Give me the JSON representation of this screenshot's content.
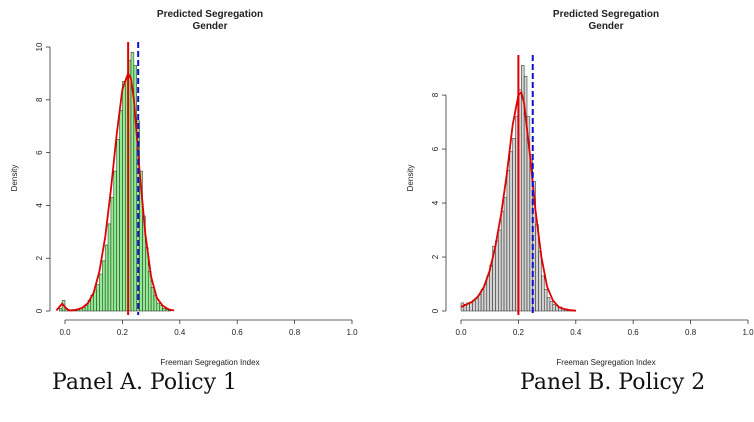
{
  "colors": {
    "panel_a_bar_fill": "#90ee90",
    "panel_b_bar_fill": "#d3d3d3",
    "bar_stroke": "#222222",
    "density_curve": "#e00000",
    "solid_line": "#e00000",
    "dashed_line": "#1010d0"
  },
  "captions": {
    "panel_a": "Panel A. Policy 1",
    "panel_b": "Panel B. Policy 2"
  },
  "chart_data": [
    {
      "type": "bar",
      "title": "Predicted Segregation",
      "subtitle": "Gender",
      "xlabel": "Freeman Segregation Index",
      "ylabel": "Density",
      "xlim": [
        0.0,
        1.0
      ],
      "ylim": [
        0,
        10
      ],
      "xticks": [
        "0.0",
        "0.2",
        "0.4",
        "0.6",
        "0.8",
        "1.0"
      ],
      "yticks": [
        "0",
        "2",
        "4",
        "6",
        "8",
        "10"
      ],
      "bin_width": 0.01,
      "bins_start": [
        -0.02,
        -0.01,
        0.0,
        0.01,
        0.02,
        0.03,
        0.04,
        0.05,
        0.06,
        0.07,
        0.08,
        0.09,
        0.1,
        0.11,
        0.12,
        0.13,
        0.14,
        0.15,
        0.16,
        0.17,
        0.18,
        0.19,
        0.2,
        0.21,
        0.22,
        0.23,
        0.24,
        0.25,
        0.26,
        0.27,
        0.28,
        0.29,
        0.3,
        0.31,
        0.32,
        0.33,
        0.34,
        0.35,
        0.36
      ],
      "density": [
        0.1,
        0.4,
        0.1,
        0.05,
        0.05,
        0.05,
        0.05,
        0.1,
        0.15,
        0.2,
        0.4,
        0.6,
        0.8,
        1.0,
        1.4,
        1.9,
        2.5,
        3.3,
        4.3,
        5.3,
        6.5,
        7.6,
        8.7,
        8.8,
        9.5,
        9.8,
        9.3,
        7.2,
        5.3,
        3.6,
        2.4,
        1.5,
        0.9,
        0.6,
        0.3,
        0.2,
        0.1,
        0.05,
        0.02
      ],
      "density_curve": {
        "x": [
          -0.03,
          -0.02,
          -0.01,
          0.0,
          0.01,
          0.02,
          0.04,
          0.06,
          0.08,
          0.1,
          0.12,
          0.14,
          0.16,
          0.18,
          0.2,
          0.22,
          0.23,
          0.24,
          0.26,
          0.28,
          0.3,
          0.32,
          0.34,
          0.36,
          0.38
        ],
        "y": [
          0.02,
          0.15,
          0.28,
          0.15,
          0.04,
          0.02,
          0.05,
          0.12,
          0.3,
          0.7,
          1.5,
          2.8,
          4.6,
          6.7,
          8.4,
          9.0,
          8.8,
          8.0,
          5.3,
          2.9,
          1.3,
          0.5,
          0.2,
          0.07,
          0.02
        ]
      },
      "solid_vline_x": 0.22,
      "dashed_vline_x": 0.255
    },
    {
      "type": "bar",
      "title": "Predicted Segregation",
      "subtitle": "Gender",
      "xlabel": "Freeman Segregation Index",
      "ylabel": "Density",
      "xlim": [
        0.0,
        1.0
      ],
      "ylim": [
        0,
        9.3
      ],
      "xticks": [
        "0.0",
        "0.2",
        "0.4",
        "0.6",
        "0.8",
        "1.0"
      ],
      "yticks": [
        "0",
        "2",
        "4",
        "6",
        "8"
      ],
      "bin_width": 0.01,
      "bins_start": [
        0.0,
        0.01,
        0.02,
        0.03,
        0.04,
        0.05,
        0.06,
        0.07,
        0.08,
        0.09,
        0.1,
        0.11,
        0.12,
        0.13,
        0.14,
        0.15,
        0.16,
        0.17,
        0.18,
        0.19,
        0.2,
        0.21,
        0.22,
        0.23,
        0.24,
        0.25,
        0.26,
        0.27,
        0.28,
        0.29,
        0.3,
        0.31,
        0.32,
        0.33,
        0.34,
        0.35,
        0.36,
        0.37,
        0.38,
        0.39
      ],
      "density": [
        0.3,
        0.25,
        0.3,
        0.3,
        0.4,
        0.45,
        0.6,
        0.8,
        1.0,
        1.3,
        1.7,
        2.4,
        2.6,
        3.0,
        3.7,
        4.2,
        5.2,
        5.9,
        6.4,
        7.2,
        8.2,
        9.1,
        8.7,
        7.2,
        5.8,
        4.8,
        3.2,
        2.2,
        1.3,
        0.8,
        0.5,
        0.35,
        0.25,
        0.2,
        0.15,
        0.1,
        0.08,
        0.05,
        0.03,
        0.02
      ],
      "density_curve": {
        "x": [
          0.0,
          0.02,
          0.04,
          0.06,
          0.08,
          0.1,
          0.12,
          0.14,
          0.16,
          0.18,
          0.2,
          0.21,
          0.22,
          0.24,
          0.26,
          0.28,
          0.3,
          0.32,
          0.34,
          0.36,
          0.38,
          0.4
        ],
        "y": [
          0.15,
          0.25,
          0.35,
          0.55,
          0.9,
          1.5,
          2.4,
          3.6,
          5.1,
          6.9,
          8.0,
          8.1,
          7.7,
          5.8,
          3.7,
          2.0,
          0.9,
          0.4,
          0.15,
          0.07,
          0.03,
          0.01
        ]
      },
      "solid_vline_x": 0.2,
      "dashed_vline_x": 0.25
    }
  ]
}
